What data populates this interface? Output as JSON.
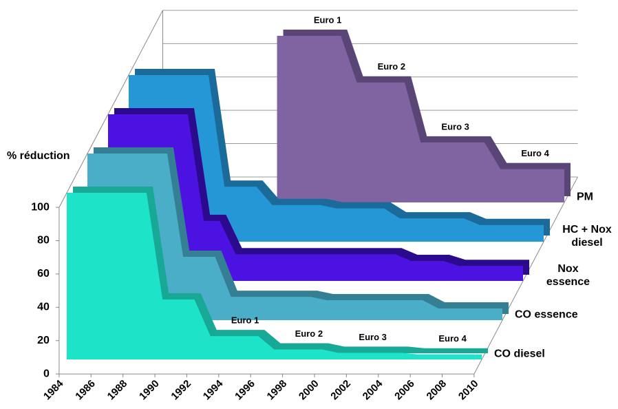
{
  "chart_data": {
    "type": "area3d",
    "y_label": "% réduction",
    "x": [
      1984,
      1985,
      1986,
      1987,
      1988,
      1989,
      1990,
      1991,
      1992,
      1993,
      1994,
      1995,
      1996,
      1997,
      1998,
      1999,
      2000,
      2001,
      2002,
      2003,
      2004,
      2005,
      2006,
      2007,
      2008,
      2009,
      2010
    ],
    "xticks": [
      1984,
      1986,
      1988,
      1990,
      1992,
      1994,
      1996,
      1998,
      2000,
      2002,
      2004,
      2006,
      2008,
      2010
    ],
    "ylim": [
      0,
      100
    ],
    "yticks": [
      0,
      20,
      40,
      60,
      80,
      100
    ],
    "grid": true,
    "series": [
      {
        "name": "CO diesel",
        "color": "#1de3c9",
        "edge_color": "#17a896",
        "values": [
          100,
          100,
          100,
          100,
          100,
          100,
          36,
          36,
          36,
          14,
          14,
          14,
          14,
          6,
          6,
          6,
          6,
          4,
          4,
          4,
          4,
          4,
          3,
          3,
          3,
          3,
          3
        ],
        "annotations": [
          {
            "text": "Euro 1",
            "x": 1995
          },
          {
            "text": "Euro 2",
            "x": 1999
          },
          {
            "text": "Euro 3",
            "x": 2003
          },
          {
            "text": "Euro 4",
            "x": 2008
          }
        ]
      },
      {
        "name": "CO essence",
        "color": "#4aaec8",
        "edge_color": "#347f94",
        "values": [
          100,
          100,
          100,
          100,
          100,
          100,
          38,
          38,
          38,
          14,
          14,
          14,
          14,
          14,
          14,
          12,
          12,
          12,
          12,
          12,
          12,
          12,
          7,
          7,
          7,
          7,
          7
        ]
      },
      {
        "name": "Nox essence",
        "color": "#4b12e2",
        "edge_color": "#2c0a8e",
        "values": [
          100,
          100,
          100,
          100,
          100,
          100,
          36,
          36,
          16,
          16,
          16,
          16,
          16,
          16,
          16,
          16,
          16,
          16,
          16,
          12,
          12,
          12,
          9,
          9,
          9,
          9,
          9
        ]
      },
      {
        "name": "HC + Nox diesel",
        "color": "#2596d6",
        "edge_color": "#1a6a9a",
        "values": [
          100,
          100,
          100,
          100,
          100,
          100,
          33,
          33,
          33,
          22,
          22,
          22,
          22,
          20,
          20,
          20,
          20,
          14,
          14,
          14,
          14,
          14,
          10,
          10,
          10,
          10,
          10
        ]
      },
      {
        "name": "PM",
        "color": "#8064a2",
        "edge_color": "#5a4676",
        "values": [
          null,
          null,
          null,
          null,
          null,
          null,
          null,
          null,
          100,
          100,
          100,
          100,
          100,
          72,
          72,
          72,
          72,
          36,
          36,
          36,
          36,
          36,
          20,
          20,
          20,
          20,
          20
        ],
        "annotations": [
          {
            "text": "Euro 1",
            "x": 1995
          },
          {
            "text": "Euro 2",
            "x": 1999
          },
          {
            "text": "Euro 3",
            "x": 2003
          },
          {
            "text": "Euro 4",
            "x": 2008
          }
        ]
      }
    ]
  }
}
